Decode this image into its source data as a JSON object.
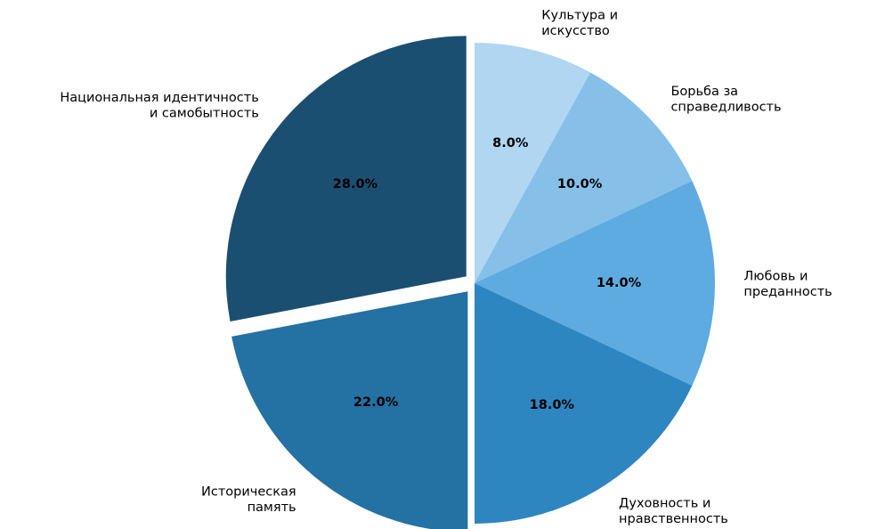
{
  "chart_data": {
    "type": "pie",
    "start_angle": 90,
    "direction": "clockwise",
    "slices": [
      {
        "label": [
          "Культура и",
          "искусство"
        ],
        "value": 8.0,
        "value_label": "8.0%",
        "color": "#b0d6f1",
        "explode": false
      },
      {
        "label": [
          "Борьба за",
          "справедливость"
        ],
        "value": 10.0,
        "value_label": "10.0%",
        "color": "#86c0e9",
        "explode": false
      },
      {
        "label": [
          "Любовь и",
          "преданность"
        ],
        "value": 14.0,
        "value_label": "14.0%",
        "color": "#5dabe1",
        "explode": false
      },
      {
        "label": [
          "Духовность и",
          "нравственность"
        ],
        "value": 18.0,
        "value_label": "18.0%",
        "color": "#2e86c1",
        "explode": false
      },
      {
        "label": [
          "Историческая",
          "память"
        ],
        "value": 22.0,
        "value_label": "22.0%",
        "color": "#2471a3",
        "explode": true
      },
      {
        "label": [
          "Национальная идентичность",
          "и самобытность"
        ],
        "value": 28.0,
        "value_label": "28.0%",
        "color": "#1b4f72",
        "explode": true
      }
    ]
  }
}
